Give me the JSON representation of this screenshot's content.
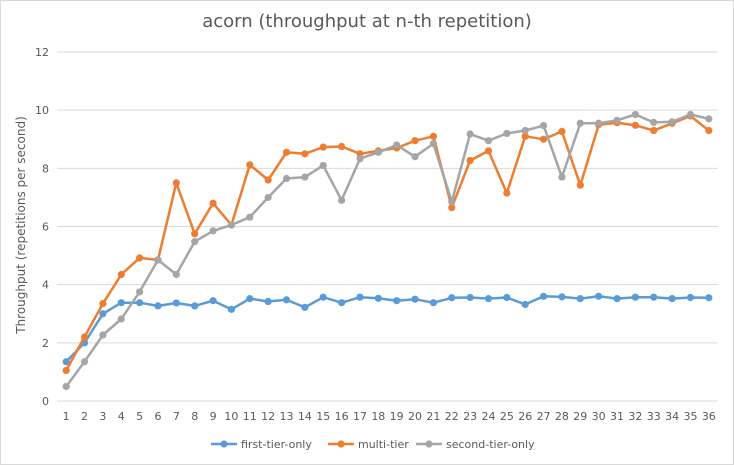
{
  "chart_data": {
    "type": "line",
    "title": "acorn (throughput at n-th repetition)",
    "xlabel": "",
    "ylabel": "Throughput (repetitions per second)",
    "ylim": [
      0,
      12
    ],
    "yticks": [
      0,
      2,
      4,
      6,
      8,
      10,
      12
    ],
    "grid": true,
    "legend_position": "bottom",
    "categories": [
      1,
      2,
      3,
      4,
      5,
      6,
      7,
      8,
      9,
      10,
      11,
      12,
      13,
      14,
      15,
      16,
      17,
      18,
      19,
      20,
      21,
      22,
      23,
      24,
      25,
      26,
      27,
      28,
      29,
      30,
      31,
      32,
      33,
      34,
      35,
      36
    ],
    "series": [
      {
        "name": "first-tier-only",
        "color": "#5b9bd5",
        "values": [
          1.35,
          2.0,
          3.0,
          3.38,
          3.38,
          3.27,
          3.37,
          3.27,
          3.45,
          3.15,
          3.52,
          3.42,
          3.48,
          3.22,
          3.57,
          3.38,
          3.57,
          3.53,
          3.45,
          3.5,
          3.38,
          3.55,
          3.56,
          3.52,
          3.56,
          3.32,
          3.6,
          3.58,
          3.52,
          3.6,
          3.52,
          3.57,
          3.57,
          3.52,
          3.56,
          3.55
        ]
      },
      {
        "name": "multi-tier",
        "color": "#ed7d31",
        "values": [
          1.05,
          2.2,
          3.35,
          4.35,
          4.92,
          4.85,
          7.5,
          5.75,
          6.8,
          6.05,
          8.12,
          7.6,
          8.55,
          8.5,
          8.73,
          8.75,
          8.5,
          8.6,
          8.7,
          8.95,
          9.1,
          6.65,
          8.27,
          8.6,
          7.15,
          9.1,
          9.0,
          9.27,
          7.42,
          9.5,
          9.57,
          9.48,
          9.3,
          9.55,
          9.8,
          9.3
        ]
      },
      {
        "name": "second-tier-only",
        "color": "#a5a5a5",
        "values": [
          0.5,
          1.35,
          2.27,
          2.82,
          3.75,
          4.85,
          4.35,
          5.48,
          5.85,
          6.05,
          6.32,
          7.0,
          7.65,
          7.7,
          8.1,
          6.9,
          8.33,
          8.55,
          8.8,
          8.4,
          8.85,
          6.85,
          9.18,
          8.95,
          9.2,
          9.3,
          9.47,
          7.7,
          9.55,
          9.55,
          9.65,
          9.85,
          9.58,
          9.6,
          9.85,
          9.7
        ]
      }
    ]
  },
  "colors": {
    "gridline": "#d9d9d9",
    "text": "#595959"
  }
}
